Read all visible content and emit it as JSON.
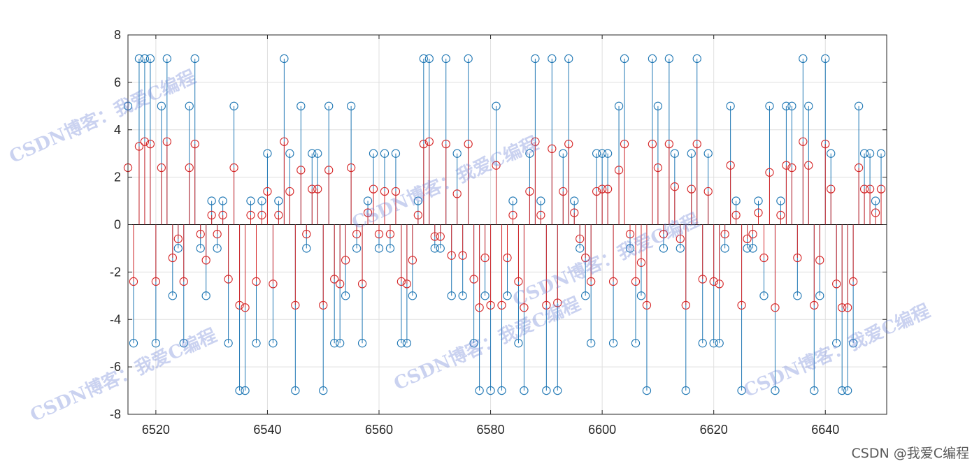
{
  "chart_data": {
    "type": "stem",
    "title": "",
    "xlabel": "",
    "ylabel": "",
    "xlim": [
      6515,
      6651
    ],
    "ylim": [
      -8,
      8
    ],
    "grid": true,
    "x_ticks": [
      6520,
      6540,
      6560,
      6580,
      6600,
      6620,
      6640
    ],
    "y_ticks": [
      -8,
      -6,
      -4,
      -2,
      0,
      2,
      4,
      6,
      8
    ],
    "x_start": 6515,
    "series": [
      {
        "color": "#1f77b4",
        "marker": "o",
        "values": [
          5,
          -5,
          7,
          7,
          7,
          -5,
          5,
          7,
          -3,
          -1,
          -5,
          5,
          7,
          -1,
          -3,
          1,
          -1,
          1,
          -5,
          5,
          -7,
          -7,
          1,
          -5,
          1,
          3,
          -5,
          1,
          7,
          3,
          -7,
          5,
          -1,
          3,
          3,
          -7,
          5,
          -5,
          -5,
          -3,
          5,
          -1,
          -5,
          1,
          3,
          -1,
          3,
          -1,
          3,
          -5,
          -5,
          -3,
          1,
          7,
          7,
          -1,
          -1,
          7,
          -3,
          3,
          -3,
          7,
          -5,
          -7,
          -3,
          -7,
          5,
          -7,
          -3,
          1,
          -5,
          -7,
          3,
          7,
          1,
          -7,
          7,
          -7,
          3,
          7,
          1,
          -1,
          -3,
          -5,
          3,
          3,
          3,
          -5,
          5,
          7,
          -1,
          -5,
          -3,
          -7,
          7,
          5,
          -1,
          7,
          3,
          -1,
          -7,
          3,
          7,
          -5,
          3,
          -5,
          -5,
          -1,
          5,
          1,
          -7,
          -1,
          -1,
          1,
          -3,
          5,
          -7,
          1,
          5,
          5,
          -3,
          7,
          5,
          -7,
          -3,
          7,
          3,
          -5,
          -7,
          -7,
          -5,
          5,
          3,
          3,
          1,
          3
        ]
      },
      {
        "color": "#d62728",
        "marker": "o",
        "values": [
          2.4,
          -2.4,
          3.3,
          3.5,
          3.4,
          -2.4,
          2.4,
          3.5,
          -1.4,
          -0.6,
          -2.4,
          2.4,
          3.4,
          -0.4,
          -1.5,
          0.4,
          -0.4,
          0.4,
          -2.3,
          2.4,
          -3.4,
          -3.5,
          0.4,
          -2.4,
          0.4,
          1.4,
          -2.5,
          0.4,
          3.5,
          1.4,
          -3.4,
          2.3,
          -0.4,
          1.5,
          1.5,
          -3.4,
          2.3,
          -2.3,
          -2.5,
          -1.5,
          2.4,
          -0.4,
          -2.5,
          0.5,
          1.5,
          -0.4,
          1.4,
          -0.4,
          1.4,
          -2.4,
          -2.5,
          -1.5,
          0.4,
          3.4,
          3.5,
          -0.5,
          -0.5,
          3.4,
          -1.3,
          1.3,
          -1.3,
          3.4,
          -2.3,
          -3.5,
          -1.4,
          -3.4,
          2.5,
          -3.4,
          -1.4,
          0.4,
          -2.4,
          -3.5,
          1.4,
          3.5,
          0.4,
          -3.4,
          3.2,
          -3.3,
          1.4,
          3.4,
          0.5,
          -0.6,
          -1.4,
          -2.4,
          1.4,
          1.5,
          1.5,
          -2.4,
          2.3,
          3.4,
          -0.4,
          -2.4,
          -1.6,
          -3.4,
          3.4,
          2.4,
          -0.4,
          3.4,
          1.6,
          -0.6,
          -3.4,
          1.5,
          3.4,
          -2.3,
          1.4,
          -2.4,
          -2.5,
          -0.4,
          2.5,
          0.4,
          -3.4,
          -0.6,
          -0.4,
          0.5,
          -1.4,
          2.2,
          -3.5,
          0.4,
          2.5,
          2.4,
          -1.4,
          3.5,
          2.5,
          -3.4,
          -1.5,
          3.4,
          1.5,
          -2.5,
          -3.5,
          -3.5,
          -2.4,
          2.4,
          1.5,
          1.5,
          0.5,
          1.5
        ]
      }
    ]
  },
  "watermarks": [
    "CSDN博客：我爱C编程",
    "CSDN博客：我爱C编程",
    "CSDN博客：我爱C编程",
    "CSDN博客：我爱C编程"
  ],
  "credit": "CSDN @我爱C编程"
}
